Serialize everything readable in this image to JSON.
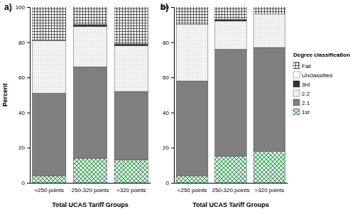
{
  "chart_data": [
    {
      "type": "bar",
      "title": "a)",
      "stacked": true,
      "y_label": "Percent",
      "x_label": "Total UCAS Tariff Groups",
      "categories": [
        "<250 points",
        "250-320 points",
        ">320 points"
      ],
      "ylim": [
        0,
        100
      ],
      "yticks": [
        0,
        20,
        40,
        60,
        80,
        100
      ],
      "series": [
        {
          "name": "1st",
          "color": "#2e9e4f",
          "values": [
            4,
            14,
            13
          ]
        },
        {
          "name": "2.1",
          "color": "#7f7f7f",
          "values": [
            47,
            52,
            39
          ]
        },
        {
          "name": "2.2",
          "color": "#d4d4d4",
          "values": [
            30,
            23,
            26
          ]
        },
        {
          "name": "3rd",
          "color": "#333333",
          "values": [
            0,
            1,
            1
          ]
        },
        {
          "name": "Unclassified",
          "color": "#ffffff",
          "values": [
            0,
            0,
            0
          ]
        },
        {
          "name": "Fail",
          "color": "#444444",
          "values": [
            19,
            10,
            21
          ]
        }
      ]
    },
    {
      "type": "bar",
      "title": "b)",
      "stacked": true,
      "x_label": "Total UCAS Tariff Groups",
      "legend_title": "Degree classification",
      "legend": "right",
      "categories": [
        "<250 points",
        "250-320 points",
        ">320 points"
      ],
      "ylim": [
        0,
        100
      ],
      "yticks": [
        0,
        20,
        40,
        60,
        80,
        100
      ],
      "series": [
        {
          "name": "1st",
          "color": "#2e9e4f",
          "values": [
            4,
            15,
            18
          ]
        },
        {
          "name": "2.1",
          "color": "#7f7f7f",
          "values": [
            54,
            61,
            59
          ]
        },
        {
          "name": "2.2",
          "color": "#d4d4d4",
          "values": [
            32,
            16,
            19
          ]
        },
        {
          "name": "3rd",
          "color": "#333333",
          "values": [
            0,
            1,
            0
          ]
        },
        {
          "name": "Unclassified",
          "color": "#ffffff",
          "values": [
            0,
            0,
            0
          ]
        },
        {
          "name": "Fail",
          "color": "#444444",
          "values": [
            10,
            7,
            4
          ]
        }
      ]
    }
  ]
}
